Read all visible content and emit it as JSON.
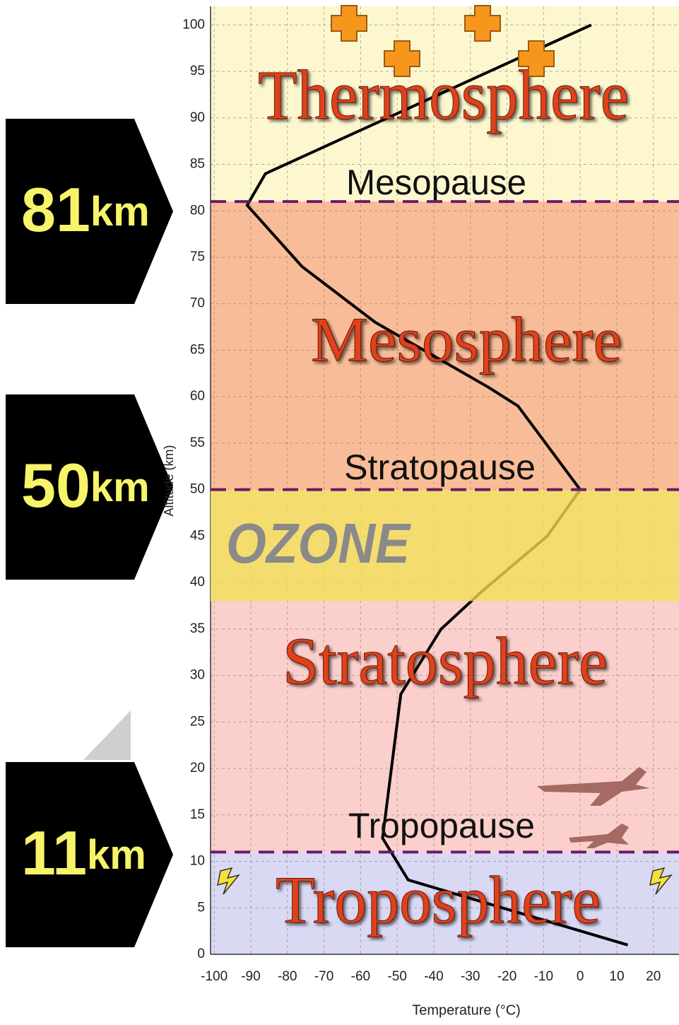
{
  "chart_data": {
    "type": "line",
    "xlabel": "Temperature (°C)",
    "ylabel": "Altitude (km)",
    "x": [
      3,
      -86,
      -91,
      -76,
      -56,
      -25,
      -17,
      0,
      -9,
      -27,
      -38,
      -49,
      -54,
      -47,
      13
    ],
    "values": [
      100,
      84,
      80.6,
      74,
      68,
      61,
      59,
      50,
      45,
      39,
      35,
      28,
      12.5,
      8,
      1
    ],
    "color": "#000000",
    "xlim": [
      -101,
      27
    ],
    "ylim": [
      0,
      102
    ],
    "xticks": [
      -100,
      -90,
      -80,
      -70,
      -60,
      -50,
      -40,
      -30,
      -20,
      -10,
      0,
      10,
      20
    ],
    "yticks": [
      0,
      5,
      10,
      15,
      20,
      25,
      30,
      35,
      40,
      45,
      50,
      55,
      60,
      65,
      70,
      75,
      80,
      85,
      90,
      95,
      100
    ],
    "grid": true,
    "layers": [
      {
        "name": "Thermosphere",
        "bottom": 81,
        "top": 102,
        "color": "#fcf7cf"
      },
      {
        "name": "Mesosphere",
        "bottom": 50,
        "top": 81,
        "color": "#f8bd98"
      },
      {
        "name": "Stratosphere",
        "bottom": 11,
        "top": 50,
        "color": "#fbd0cc"
      },
      {
        "name": "Troposphere",
        "bottom": 0,
        "top": 11,
        "color": "#d9d9f4"
      }
    ],
    "ozone": {
      "label": "OZONE",
      "bottom": 38,
      "top": 50,
      "color": "#f4df55"
    },
    "pauses": [
      {
        "label": "Mesopause"
      },
      {
        "label": "Stratopause"
      },
      {
        "label": "Tropopause"
      }
    ],
    "markers": [
      {
        "value": 81,
        "unit": "km"
      },
      {
        "value": 50,
        "unit": "km"
      },
      {
        "value": 11,
        "unit": "km"
      }
    ]
  }
}
